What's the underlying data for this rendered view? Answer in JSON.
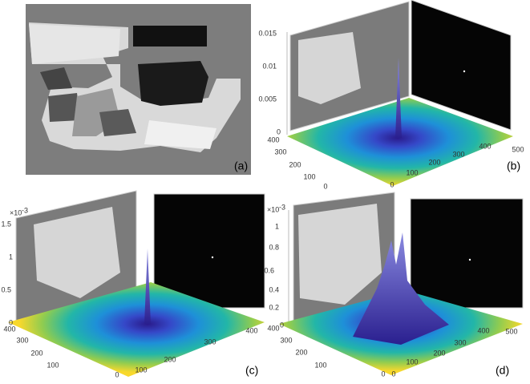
{
  "panels": [
    {
      "label": "(a)"
    },
    {
      "label": "(b)",
      "zticks": [
        "0.015",
        "0.01",
        "0.005",
        "0"
      ],
      "yticks": [
        "400",
        "300",
        "200",
        "100",
        "0"
      ],
      "xticks": [
        "0",
        "100",
        "200",
        "300",
        "400",
        "500"
      ]
    },
    {
      "label": "(c)",
      "multiplier": {
        "base": "×10",
        "exponent": "-3"
      },
      "zticks": [
        "1.5",
        "1",
        "0.5",
        "0"
      ],
      "yticks": [
        "400",
        "300",
        "200",
        "100",
        "0"
      ],
      "xticks": [
        "100",
        "200",
        "300",
        "400"
      ]
    },
    {
      "label": "(d)",
      "multiplier": {
        "base": "×10",
        "exponent": "-3"
      },
      "zticks": [
        "1",
        "0.8",
        "0.6",
        "0.4",
        "0.2",
        "0"
      ],
      "yticks": [
        "400",
        "300",
        "200",
        "100",
        "0"
      ],
      "xticks": [
        "0",
        "100",
        "200",
        "300",
        "400",
        "500"
      ]
    }
  ]
}
